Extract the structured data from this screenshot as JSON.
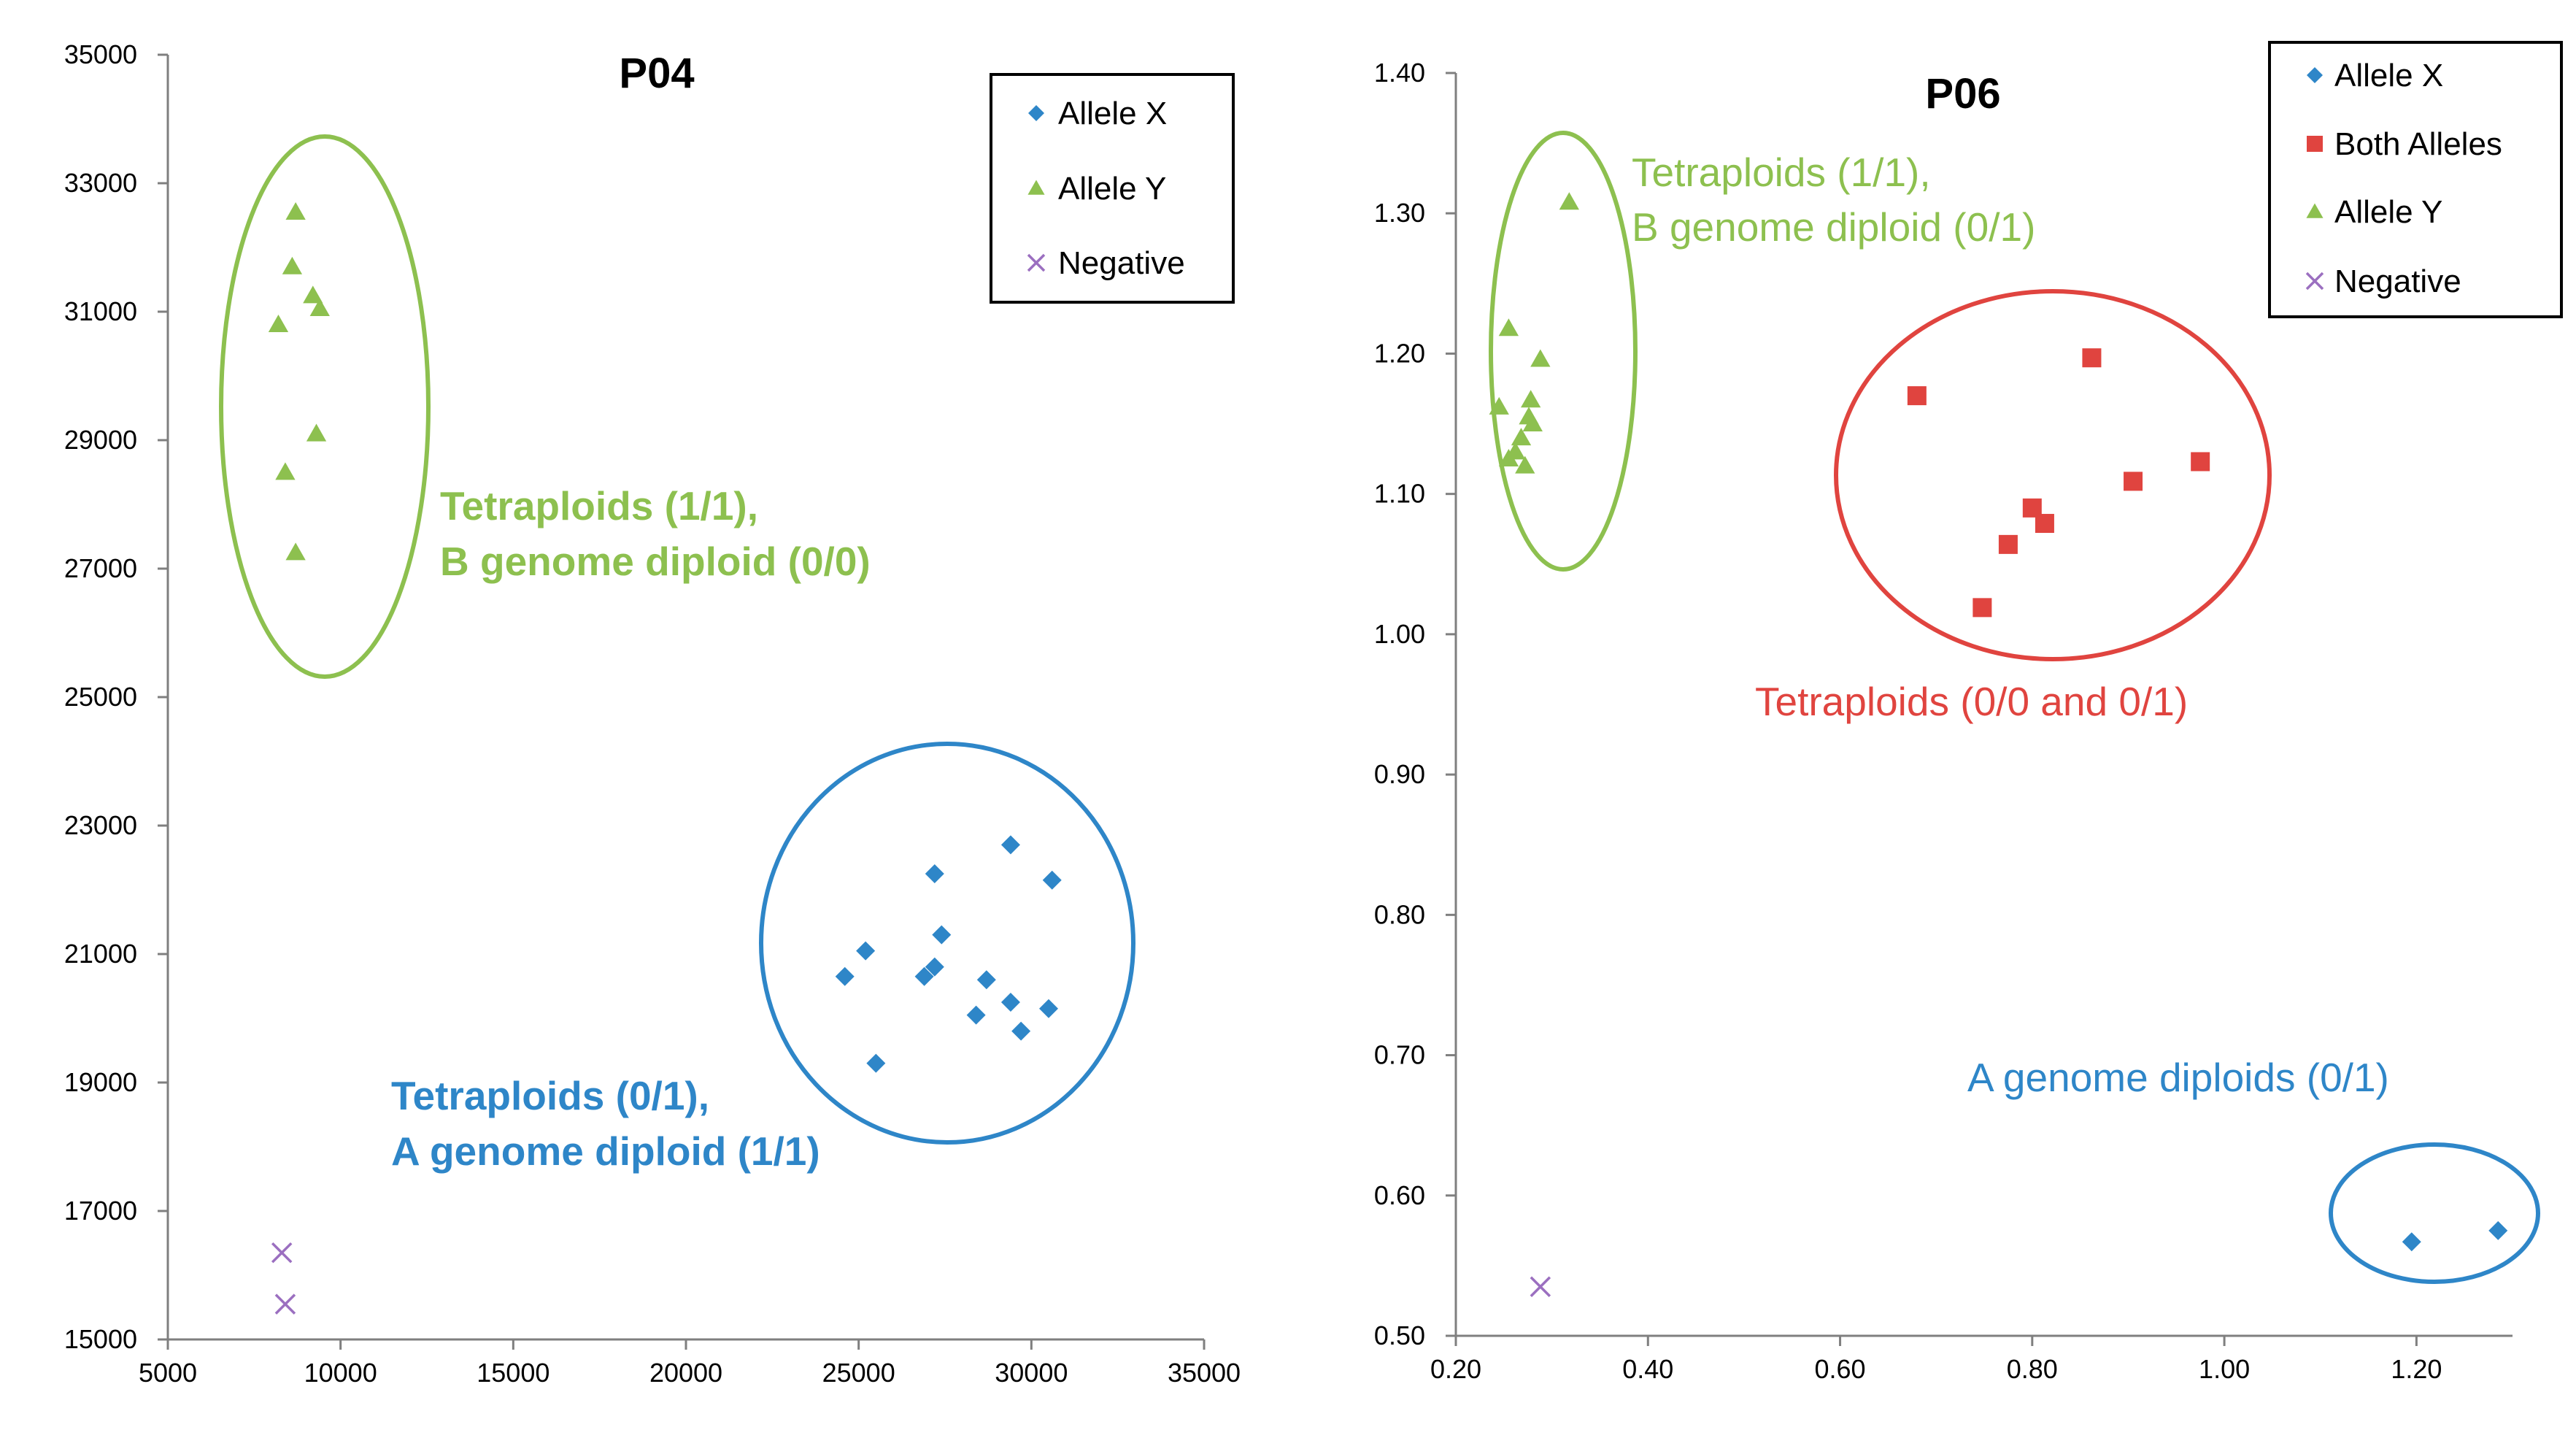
{
  "chart_data": [
    {
      "type": "scatter",
      "title": "P04",
      "xlim": [
        5000,
        35000
      ],
      "ylim": [
        15000,
        35000
      ],
      "xticks": [
        "5000",
        "10000",
        "15000",
        "20000",
        "25000",
        "30000",
        "35000"
      ],
      "yticks": [
        "15000",
        "17000",
        "19000",
        "21000",
        "23000",
        "25000",
        "27000",
        "29000",
        "31000",
        "33000",
        "35000"
      ],
      "legend": [
        "Allele X",
        "Allele Y",
        "Negative"
      ],
      "series": [
        {
          "name": "Allele X",
          "marker": "diamond",
          "color": "#2E86C8",
          "points": [
            [
              27200,
              22250
            ],
            [
              29400,
              22700
            ],
            [
              30600,
              22150
            ],
            [
              27400,
              21300
            ],
            [
              25200,
              21050
            ],
            [
              27200,
              20800
            ],
            [
              26900,
              20650
            ],
            [
              24600,
              20650
            ],
            [
              28700,
              20600
            ],
            [
              29400,
              20250
            ],
            [
              30500,
              20150
            ],
            [
              28400,
              20050
            ],
            [
              29700,
              19800
            ],
            [
              25500,
              19300
            ]
          ]
        },
        {
          "name": "Allele Y",
          "marker": "triangle",
          "color": "#8DC04F",
          "points": [
            [
              8700,
              32550
            ],
            [
              8600,
              31700
            ],
            [
              9200,
              31250
            ],
            [
              9400,
              31050
            ],
            [
              8200,
              30800
            ],
            [
              9300,
              29100
            ],
            [
              8400,
              28500
            ],
            [
              8700,
              27250
            ]
          ]
        },
        {
          "name": "Negative",
          "marker": "x",
          "color": "#9B6FC0",
          "points": [
            [
              8300,
              16350
            ],
            [
              8400,
              15550
            ]
          ]
        }
      ],
      "annotations": [
        {
          "lines": [
            "Tetraploids (1/1),",
            "B genome diploid (0/0)"
          ],
          "color": "#8DC04F"
        },
        {
          "lines": [
            "Tetraploids (0/1),",
            "A genome diploid (1/1)"
          ],
          "color": "#2E86C8"
        }
      ]
    },
    {
      "type": "scatter",
      "title": "P06",
      "xlim": [
        0.2,
        1.3
      ],
      "ylim": [
        0.5,
        1.4
      ],
      "xticks": [
        "0.20",
        "0.40",
        "0.60",
        "0.80",
        "1.00",
        "1.20"
      ],
      "yticks": [
        "0.50",
        "0.60",
        "0.70",
        "0.80",
        "0.90",
        "1.00",
        "1.10",
        "1.20",
        "1.30",
        "1.40"
      ],
      "legend": [
        "Allele X",
        "Both Alleles",
        "Allele Y",
        "Negative"
      ],
      "series": [
        {
          "name": "Allele X",
          "marker": "diamond",
          "color": "#2E86C8",
          "points": [
            [
              1.195,
              0.567
            ],
            [
              1.285,
              0.575
            ]
          ]
        },
        {
          "name": "Both Alleles",
          "marker": "square",
          "color": "#E0443F",
          "points": [
            [
              0.68,
              1.17
            ],
            [
              0.862,
              1.197
            ],
            [
              0.975,
              1.123
            ],
            [
              0.905,
              1.109
            ],
            [
              0.8,
              1.09
            ],
            [
              0.813,
              1.079
            ],
            [
              0.775,
              1.064
            ],
            [
              0.748,
              1.019
            ]
          ]
        },
        {
          "name": "Allele Y",
          "marker": "triangle",
          "color": "#8DC04F",
          "points": [
            [
              0.318,
              1.308
            ],
            [
              0.255,
              1.218
            ],
            [
              0.288,
              1.196
            ],
            [
              0.278,
              1.167
            ],
            [
              0.245,
              1.162
            ],
            [
              0.276,
              1.155
            ],
            [
              0.28,
              1.15
            ],
            [
              0.268,
              1.14
            ],
            [
              0.262,
              1.13
            ],
            [
              0.255,
              1.125
            ],
            [
              0.272,
              1.12
            ]
          ]
        },
        {
          "name": "Negative",
          "marker": "x",
          "color": "#9B6FC0",
          "points": [
            [
              0.288,
              0.535
            ]
          ]
        }
      ],
      "annotations": [
        {
          "lines": [
            "Tetraploids (1/1),",
            "B genome diploid (0/1)"
          ],
          "color": "#8DC04F"
        },
        {
          "lines": [
            "Tetraploids (0/0 and 0/1)"
          ],
          "color": "#E0443F"
        },
        {
          "lines": [
            "A genome diploids (0/1)"
          ],
          "color": "#2E86C8"
        }
      ]
    }
  ]
}
